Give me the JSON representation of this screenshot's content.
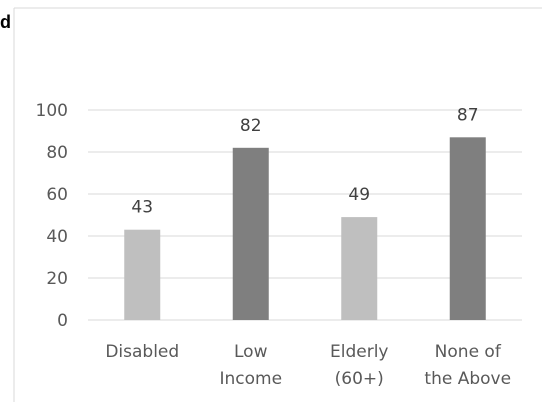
{
  "cut_off_text": "d",
  "chart_data": {
    "type": "bar",
    "categories": [
      [
        "Disabled"
      ],
      [
        "Low",
        "Income"
      ],
      [
        "Elderly",
        "(60+)"
      ],
      [
        "None of",
        "the Above"
      ]
    ],
    "values": [
      43,
      82,
      49,
      87
    ],
    "data_labels": [
      "43",
      "82",
      "49",
      "87"
    ],
    "bar_colors": [
      "#bfbfbf",
      "#7f7f7f",
      "#bfbfbf",
      "#7f7f7f"
    ],
    "ylim": [
      0,
      100
    ],
    "yticks": [
      "0",
      "20",
      "40",
      "60",
      "80",
      "100"
    ],
    "grid": true,
    "title": "",
    "xlabel": "",
    "ylabel": ""
  }
}
